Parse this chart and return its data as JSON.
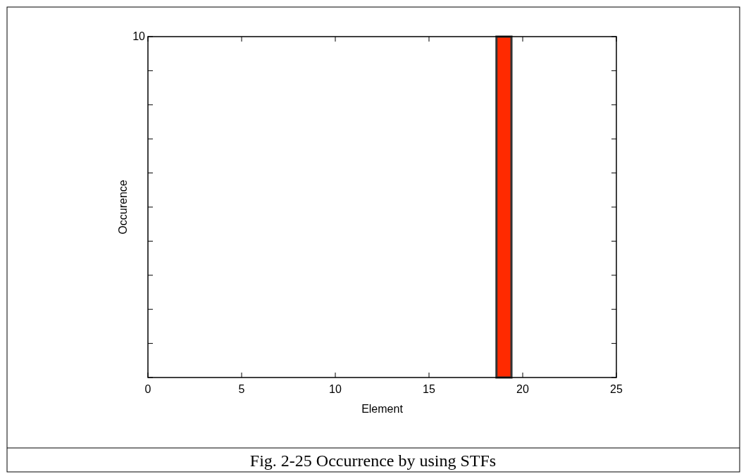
{
  "chart_data": {
    "type": "bar",
    "x": [
      19
    ],
    "values": [
      10
    ],
    "color": "#ff2a00",
    "xlim": [
      0,
      25
    ],
    "xticks": [
      0,
      5,
      10,
      15,
      20,
      25
    ],
    "ylim": [
      0,
      10
    ],
    "yticks": [
      {
        "value": 0,
        "label": null
      },
      {
        "value": 1,
        "label": null
      },
      {
        "value": 2,
        "label": null
      },
      {
        "value": 3,
        "label": null
      },
      {
        "value": 4,
        "label": null
      },
      {
        "value": 5,
        "label": null
      },
      {
        "value": 6,
        "label": null
      },
      {
        "value": 7,
        "label": null
      },
      {
        "value": 8,
        "label": null
      },
      {
        "value": 9,
        "label": null
      },
      10
    ],
    "xlabel": "Element",
    "ylabel": "Occurence",
    "annotations": [
      "Fig. 2-25 Occurrence by using STFs"
    ]
  }
}
